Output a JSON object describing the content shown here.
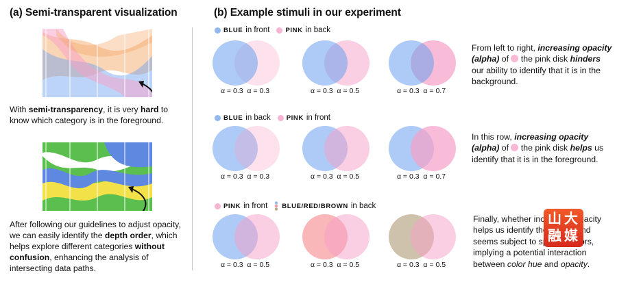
{
  "panel_a": {
    "title": "(a) Semi-transparent visualization",
    "caption_top": [
      "With ",
      "semi-transparency",
      ", it is very ",
      "hard",
      " to know which category is in the foreground."
    ],
    "caption_bottom": [
      "After following our guidelines to adjust opacity, we can easily identify the ",
      "depth order",
      ", which helps explore different categories ",
      "without confusion",
      ", enhancing the analysis of intersecting data paths."
    ]
  },
  "panel_b": {
    "title": "(b) Example stimuli in our experiment",
    "rows": [
      {
        "legend": [
          {
            "color": "#93b8ef",
            "tag": "BLUE",
            "text": "in front"
          },
          {
            "color": "#f7b5d3",
            "tag": "PINK",
            "text": "in back"
          }
        ],
        "pairs": [
          {
            "left": "α = 0.3",
            "right": "α = 0.3"
          },
          {
            "left": "α = 0.3",
            "right": "α = 0.5"
          },
          {
            "left": "α = 0.3",
            "right": "α = 0.7"
          }
        ],
        "description": [
          "From left to right, ",
          "increasing opacity (alpha)",
          " of ",
          " the pink disk ",
          "hinders",
          " our ability to identify that it is in the background."
        ]
      },
      {
        "legend": [
          {
            "color": "#93b8ef",
            "tag": "BLUE",
            "text": "in back"
          },
          {
            "color": "#f7b5d3",
            "tag": "PINK",
            "text": "in front"
          }
        ],
        "pairs": [
          {
            "left": "α = 0.3",
            "right": "α = 0.3"
          },
          {
            "left": "α = 0.3",
            "right": "α = 0.5"
          },
          {
            "left": "α = 0.3",
            "right": "α = 0.7"
          }
        ],
        "description": [
          "In this row, ",
          "increasing opacity (alpha)",
          " of ",
          " the pink disk ",
          "helps",
          " us identify that it is in the foreground."
        ]
      },
      {
        "legend": [
          {
            "color": "#f7b5d3",
            "tag": "PINK",
            "text": "in front"
          },
          {
            "color": "multi",
            "tag": "BLUE/RED/BROWN",
            "text": "in back"
          }
        ],
        "pairs": [
          {
            "left": "α = 0.3",
            "right": "α = 0.5"
          },
          {
            "left": "α = 0.3",
            "right": "α = 0.5"
          },
          {
            "left": "α = 0.3",
            "right": "α = 0.5"
          }
        ],
        "description": [
          "Finally, whether increasing opacity helps us identify the foreground seems subject to specific colors, implying a potential interaction between ",
          "color hue",
          " and ",
          "opacity",
          "."
        ]
      }
    ]
  },
  "logo": {
    "text": [
      "山",
      "大",
      "融",
      "媒"
    ]
  },
  "colors": {
    "blue": "#6aa0ee",
    "pink": "#f7a0c8",
    "red": "#f47c80",
    "brown": "#a89068",
    "orange": "#f4b27a",
    "green": "#5bbf4f",
    "yellow": "#f3e14a",
    "navy": "#5f88e0"
  }
}
